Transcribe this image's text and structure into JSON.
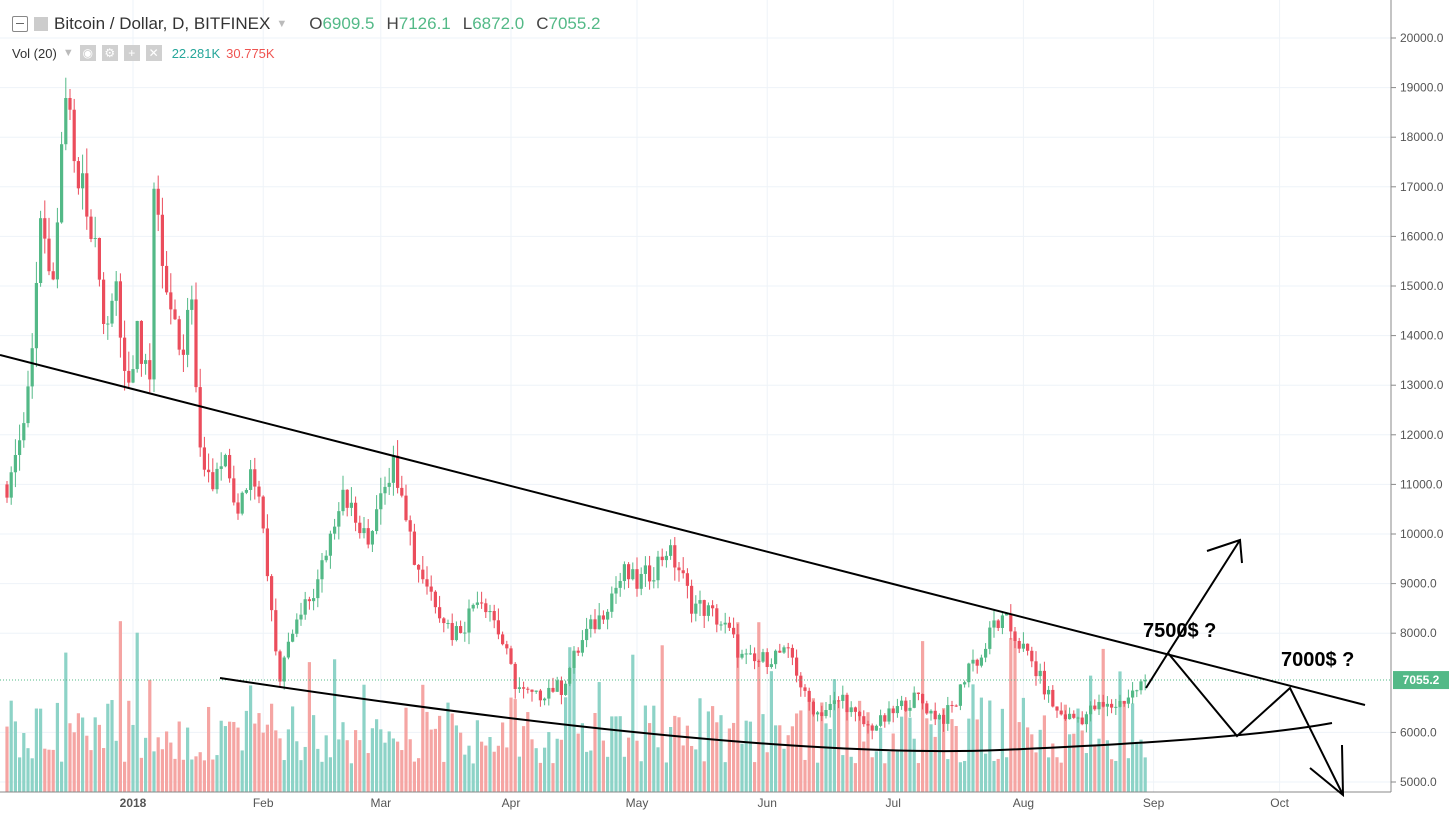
{
  "header": {
    "symbol": "Bitcoin / Dollar, D, BITFINEX",
    "open_label": "O",
    "open": "6909.5",
    "high_label": "H",
    "high": "7126.1",
    "low_label": "L",
    "low": "6872.0",
    "close_label": "C",
    "close": "7055.2"
  },
  "volume_indicator": {
    "label": "Vol (20)",
    "value1": "22.281K",
    "value2": "30.775K"
  },
  "annotations": {
    "target1": "7500$ ?",
    "target2": "7000$ ?"
  },
  "colors": {
    "up": "#53b987",
    "down": "#eb4d5c",
    "vol_up": "#8dd3c7",
    "vol_down": "#f5a5a3",
    "grid": "#eef3f8"
  },
  "chart_data": {
    "type": "candlestick",
    "title": "Bitcoin / Dollar, D, BITFINEX",
    "x_tick_labels": [
      "2018",
      "Feb",
      "Mar",
      "Apr",
      "May",
      "Jun",
      "Jul",
      "Aug",
      "Sep",
      "Oct"
    ],
    "x_tick_days_from_2018_01_01": [
      0,
      31,
      59,
      90,
      120,
      151,
      181,
      212,
      243,
      273
    ],
    "y_tick_labels": [
      "20000.0",
      "19000.0",
      "18000.0",
      "17000.0",
      "16000.0",
      "15000.0",
      "14000.0",
      "13000.0",
      "12000.0",
      "11000.0",
      "10000.0",
      "9000.0",
      "8000.0",
      "6000.0",
      "5000.0"
    ],
    "y_ticks": [
      20000,
      19000,
      18000,
      17000,
      16000,
      15000,
      14000,
      13000,
      12000,
      11000,
      10000,
      9000,
      8000,
      6000,
      5000
    ],
    "ylim": [
      5000,
      20000
    ],
    "last_price": 7055.2,
    "last_price_label": "7055.2",
    "close_keypoints_day_price": [
      [
        -30,
        11000
      ],
      [
        -27,
        11600
      ],
      [
        -24,
        13500
      ],
      [
        -22,
        16500
      ],
      [
        -19,
        15000
      ],
      [
        -16,
        19200
      ],
      [
        -14,
        17800
      ],
      [
        -12,
        17000
      ],
      [
        -9,
        16000
      ],
      [
        -7,
        14000
      ],
      [
        -4,
        15000
      ],
      [
        -2,
        13000
      ],
      [
        1,
        14000
      ],
      [
        4,
        13200
      ],
      [
        5,
        17000
      ],
      [
        8,
        15000
      ],
      [
        11,
        13500
      ],
      [
        14,
        14500
      ],
      [
        16,
        11500
      ],
      [
        19,
        11000
      ],
      [
        22,
        11500
      ],
      [
        25,
        10500
      ],
      [
        28,
        11500
      ],
      [
        31,
        10000
      ],
      [
        33,
        8500
      ],
      [
        35,
        7000
      ],
      [
        38,
        8000
      ],
      [
        41,
        8500
      ],
      [
        44,
        9000
      ],
      [
        47,
        10000
      ],
      [
        50,
        11000
      ],
      [
        53,
        10200
      ],
      [
        56,
        9800
      ],
      [
        59,
        11000
      ],
      [
        62,
        11400
      ],
      [
        64,
        11000
      ],
      [
        67,
        9500
      ],
      [
        70,
        9000
      ],
      [
        73,
        8500
      ],
      [
        76,
        8000
      ],
      [
        79,
        8200
      ],
      [
        82,
        8800
      ],
      [
        85,
        8500
      ],
      [
        88,
        7800
      ],
      [
        91,
        7000
      ],
      [
        93,
        6800
      ],
      [
        96,
        6700
      ],
      [
        99,
        6900
      ],
      [
        102,
        6900
      ],
      [
        105,
        7500
      ],
      [
        108,
        8000
      ],
      [
        111,
        8300
      ],
      [
        114,
        8800
      ],
      [
        117,
        9200
      ],
      [
        120,
        9000
      ],
      [
        124,
        9300
      ],
      [
        127,
        9700
      ],
      [
        130,
        9300
      ],
      [
        133,
        8600
      ],
      [
        136,
        8500
      ],
      [
        139,
        8300
      ],
      [
        142,
        8000
      ],
      [
        145,
        7500
      ],
      [
        148,
        7400
      ],
      [
        151,
        7500
      ],
      [
        154,
        7600
      ],
      [
        157,
        7500
      ],
      [
        160,
        6700
      ],
      [
        163,
        6400
      ],
      [
        166,
        6500
      ],
      [
        169,
        6700
      ],
      [
        172,
        6300
      ],
      [
        175,
        6100
      ],
      [
        178,
        6200
      ],
      [
        181,
        6400
      ],
      [
        184,
        6600
      ],
      [
        187,
        6700
      ],
      [
        190,
        6400
      ],
      [
        193,
        6300
      ],
      [
        196,
        6600
      ],
      [
        199,
        7400
      ],
      [
        202,
        7500
      ],
      [
        205,
        8200
      ],
      [
        208,
        8200
      ],
      [
        211,
        7800
      ],
      [
        214,
        7400
      ],
      [
        217,
        6900
      ],
      [
        220,
        6400
      ],
      [
        223,
        6300
      ],
      [
        226,
        6300
      ],
      [
        229,
        6500
      ],
      [
        232,
        6500
      ],
      [
        235,
        6600
      ],
      [
        238,
        6800
      ],
      [
        241,
        7055.2
      ]
    ],
    "trendlines_day_price": {
      "resistance": [
        [
          -31.7,
          13609
        ],
        [
          293.3,
          6552
        ]
      ],
      "support_curve": [
        [
          20.7,
          7097
        ],
        [
          154,
          5746
        ],
        [
          206,
          5645
        ],
        [
          285,
          6190
        ]
      ]
    }
  }
}
